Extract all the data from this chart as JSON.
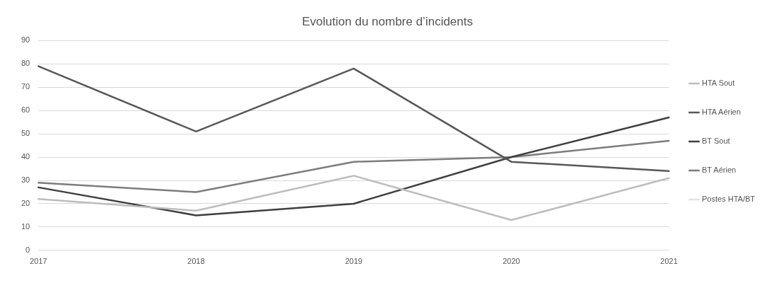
{
  "chart_data": {
    "type": "line",
    "title": "Evolution du nombre d’incidents",
    "categories": [
      "2017",
      "2018",
      "2019",
      "2020",
      "2021"
    ],
    "series": [
      {
        "name": "HTA Sout",
        "color": "#bdbdbd",
        "values": [
          22,
          17,
          32,
          13,
          31
        ]
      },
      {
        "name": "HTA Aérien",
        "color": "#575757",
        "values": [
          79,
          51,
          78,
          38,
          34
        ]
      },
      {
        "name": "BT Sout",
        "color": "#3f3f3f",
        "values": [
          27,
          15,
          20,
          40,
          57
        ]
      },
      {
        "name": "BT Aérien",
        "color": "#7d7d7d",
        "values": [
          29,
          25,
          38,
          40,
          47
        ]
      },
      {
        "name": "Postes HTA/BT",
        "color": "#e3e3e3",
        "values": [
          null,
          null,
          null,
          null,
          null
        ]
      }
    ],
    "ylim": [
      0,
      90
    ],
    "yticks": [
      0,
      10,
      20,
      30,
      40,
      50,
      60,
      70,
      80,
      90
    ],
    "grid": "y",
    "legend": "right",
    "marker": "none",
    "line_style": "solid"
  }
}
